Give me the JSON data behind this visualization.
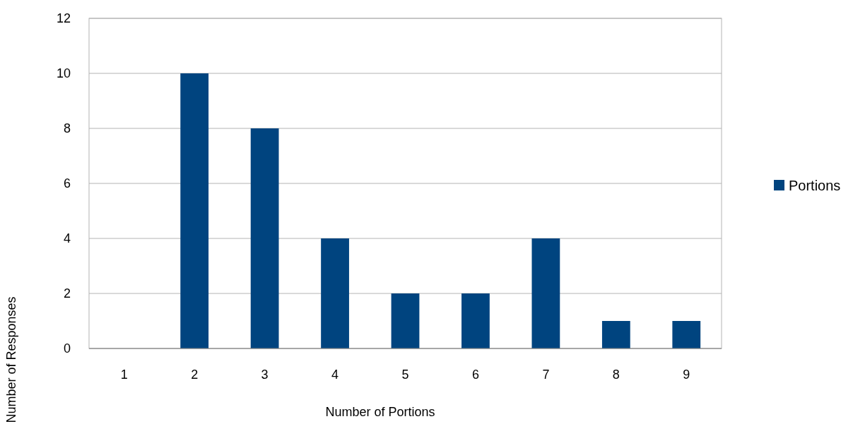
{
  "chart_data": {
    "type": "bar",
    "xlabel": "Number of Portions",
    "ylabel": "Number of Responses",
    "categories": [
      "1",
      "2",
      "3",
      "4",
      "5",
      "6",
      "7",
      "8",
      "9"
    ],
    "series": [
      {
        "name": "Portions",
        "color": "#00447f",
        "values": [
          0,
          10,
          8,
          4,
          2,
          2,
          4,
          1,
          1
        ]
      }
    ],
    "ylim": [
      0,
      12
    ],
    "yticks": [
      0,
      2,
      4,
      6,
      8,
      10,
      12
    ],
    "grid": "y",
    "legend": "right"
  }
}
